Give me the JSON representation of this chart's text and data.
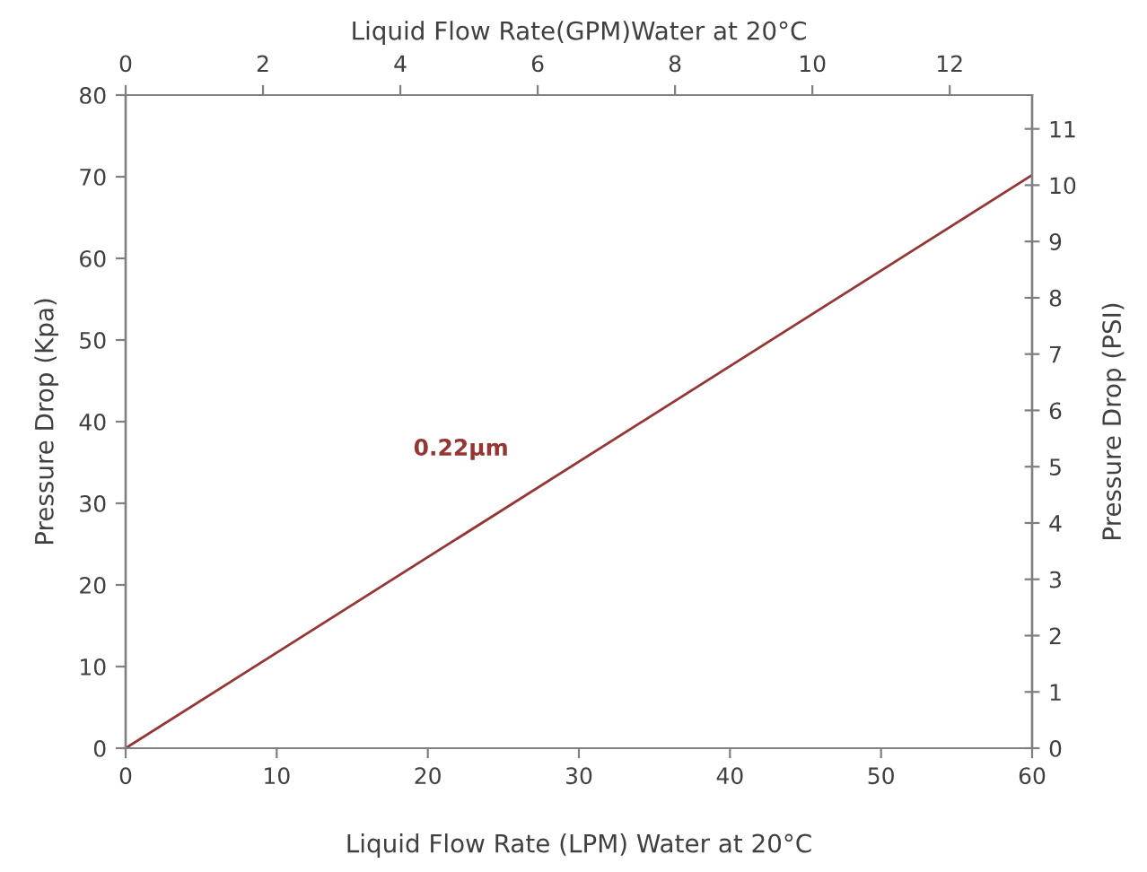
{
  "chart_data": {
    "type": "line",
    "xlabel": "Liquid Flow Rate (LPM) Water at 20°C",
    "ylabel": "Pressure Drop (Kpa)",
    "y2label": "Pressure Drop (PSI)",
    "x2label": "Liquid Flow Rate(GPM)Water at 20°C",
    "x": [
      0,
      60
    ],
    "series": [
      {
        "name": "0.22µm",
        "color": "#943634",
        "values": [
          0,
          70.2
        ]
      }
    ],
    "xlim": [
      0,
      60
    ],
    "xticks": [
      0,
      10,
      20,
      30,
      40,
      50,
      60
    ],
    "ylim": [
      0,
      80
    ],
    "yticks": [
      0,
      10,
      20,
      30,
      40,
      50,
      60,
      70,
      80
    ],
    "x2lim": [
      0,
      13.2
    ],
    "x2ticks": [
      0,
      2,
      4,
      6,
      8,
      10,
      12
    ],
    "y2lim": [
      0,
      11.6
    ],
    "y2ticks": [
      0,
      1,
      2,
      3,
      4,
      5,
      6,
      7,
      8,
      9,
      10,
      11
    ],
    "grid": false,
    "legend": false,
    "marker": "none",
    "line_style": "solid"
  }
}
